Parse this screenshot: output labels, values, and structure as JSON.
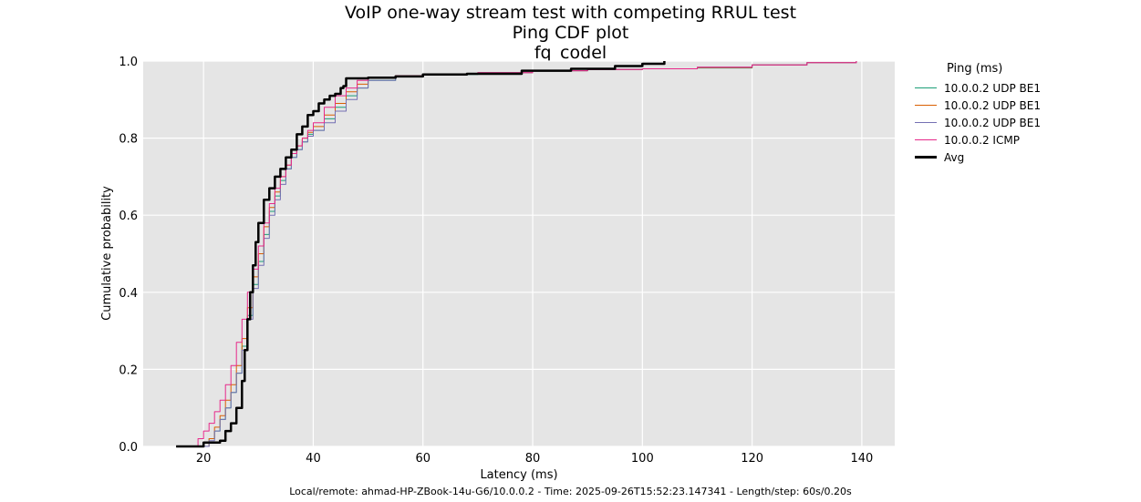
{
  "header": {
    "title_lines": [
      "VoIP one-way stream test with competing RRUL test",
      "Ping CDF plot",
      "fq_codel"
    ]
  },
  "footer": {
    "text": "Local/remote: ahmad-HP-ZBook-14u-G6/10.0.0.2 - Time: 2025-09-26T15:52:23.147341 - Length/step: 60s/0.20s"
  },
  "legend": {
    "title": "Ping (ms)"
  },
  "chart_data": {
    "type": "line",
    "title": "",
    "xlabel": "Latency (ms)",
    "ylabel": "Cumulative probability",
    "xlim": [
      9,
      146
    ],
    "ylim": [
      0,
      1.0
    ],
    "x_ticks": [
      20,
      40,
      60,
      80,
      100,
      120,
      140
    ],
    "y_ticks": [
      0.0,
      0.2,
      0.4,
      0.6,
      0.8,
      1.0
    ],
    "x_tick_labels": [
      "20",
      "40",
      "60",
      "80",
      "100",
      "120",
      "140"
    ],
    "y_tick_labels": [
      "0.0",
      "0.2",
      "0.4",
      "0.6",
      "0.8",
      "1.0"
    ],
    "grid": true,
    "legend_placement": "outside-right",
    "series": [
      {
        "name": "10.0.0.2 UDP BE1",
        "color": "#1b9e77",
        "width": 1,
        "x": [
          19,
          21,
          22,
          23,
          24,
          25,
          26,
          27,
          28,
          29,
          30,
          31,
          32,
          33,
          34,
          35,
          36,
          37,
          38,
          39,
          40,
          42,
          44,
          46,
          48,
          50,
          55,
          60,
          70,
          80,
          90,
          100,
          110,
          120,
          130,
          139
        ],
        "y": [
          0.0,
          0.02,
          0.04,
          0.07,
          0.1,
          0.14,
          0.19,
          0.26,
          0.34,
          0.42,
          0.48,
          0.55,
          0.61,
          0.65,
          0.69,
          0.72,
          0.75,
          0.77,
          0.79,
          0.81,
          0.82,
          0.85,
          0.88,
          0.91,
          0.93,
          0.95,
          0.96,
          0.965,
          0.97,
          0.975,
          0.978,
          0.98,
          0.982,
          0.99,
          0.996,
          1.0
        ]
      },
      {
        "name": "10.0.0.2 UDP BE1",
        "color": "#d95f02",
        "width": 1,
        "x": [
          19,
          21,
          22,
          23,
          24,
          25,
          26,
          27,
          28,
          29,
          30,
          31,
          32,
          33,
          34,
          35,
          36,
          37,
          38,
          39,
          40,
          42,
          44,
          46,
          48,
          50,
          55,
          60,
          70,
          80,
          90,
          100,
          110,
          120,
          130,
          139
        ],
        "y": [
          0.0,
          0.02,
          0.05,
          0.08,
          0.12,
          0.16,
          0.21,
          0.28,
          0.36,
          0.44,
          0.5,
          0.57,
          0.62,
          0.66,
          0.7,
          0.73,
          0.76,
          0.78,
          0.8,
          0.815,
          0.83,
          0.86,
          0.89,
          0.92,
          0.94,
          0.955,
          0.962,
          0.966,
          0.97,
          0.975,
          0.978,
          0.98,
          0.983,
          0.99,
          0.996,
          1.0
        ]
      },
      {
        "name": "10.0.0.2 UDP BE1",
        "color": "#7570b3",
        "width": 1,
        "x": [
          19,
          21,
          22,
          23,
          24,
          25,
          26,
          27,
          28,
          29,
          30,
          31,
          32,
          33,
          34,
          35,
          36,
          37,
          38,
          39,
          40,
          42,
          44,
          46,
          48,
          50,
          55,
          60,
          70,
          80,
          90,
          100,
          110,
          120,
          130,
          139
        ],
        "y": [
          0.0,
          0.015,
          0.04,
          0.07,
          0.1,
          0.14,
          0.19,
          0.25,
          0.33,
          0.41,
          0.47,
          0.54,
          0.6,
          0.64,
          0.68,
          0.72,
          0.75,
          0.77,
          0.79,
          0.805,
          0.82,
          0.84,
          0.87,
          0.9,
          0.93,
          0.95,
          0.96,
          0.966,
          0.97,
          0.975,
          0.978,
          0.98,
          0.984,
          0.99,
          0.996,
          1.0
        ]
      },
      {
        "name": "10.0.0.2 ICMP",
        "color": "#e7298a",
        "width": 1,
        "x": [
          17,
          19,
          20,
          21,
          22,
          23,
          24,
          25,
          26,
          27,
          28,
          29,
          30,
          31,
          32,
          33,
          34,
          35,
          36,
          37,
          38,
          39,
          40,
          42,
          44,
          46,
          48,
          50,
          55,
          60,
          70,
          80,
          90,
          100,
          110,
          120,
          130,
          139
        ],
        "y": [
          0.0,
          0.02,
          0.04,
          0.06,
          0.09,
          0.12,
          0.16,
          0.21,
          0.27,
          0.33,
          0.4,
          0.46,
          0.52,
          0.58,
          0.63,
          0.67,
          0.7,
          0.73,
          0.76,
          0.78,
          0.8,
          0.82,
          0.84,
          0.88,
          0.91,
          0.93,
          0.95,
          0.955,
          0.962,
          0.966,
          0.97,
          0.975,
          0.978,
          0.98,
          0.984,
          0.99,
          0.996,
          1.0
        ]
      },
      {
        "name": "Avg",
        "color": "#000000",
        "width": 2.5,
        "x": [
          15,
          20,
          23,
          24,
          25,
          26,
          27,
          27.5,
          28,
          28.5,
          29,
          29.5,
          30,
          31,
          32,
          33,
          34,
          35,
          36,
          37,
          38,
          39,
          40,
          41,
          42,
          43,
          44,
          45,
          45.5,
          46,
          47,
          50,
          55,
          60,
          68,
          78,
          87,
          95,
          100,
          104
        ],
        "y": [
          0.0,
          0.01,
          0.015,
          0.04,
          0.06,
          0.1,
          0.17,
          0.25,
          0.33,
          0.4,
          0.47,
          0.53,
          0.58,
          0.64,
          0.67,
          0.7,
          0.72,
          0.75,
          0.77,
          0.81,
          0.83,
          0.86,
          0.87,
          0.89,
          0.9,
          0.91,
          0.915,
          0.93,
          0.935,
          0.955,
          0.955,
          0.957,
          0.96,
          0.965,
          0.967,
          0.975,
          0.98,
          0.987,
          0.993,
          1.0
        ]
      }
    ]
  }
}
